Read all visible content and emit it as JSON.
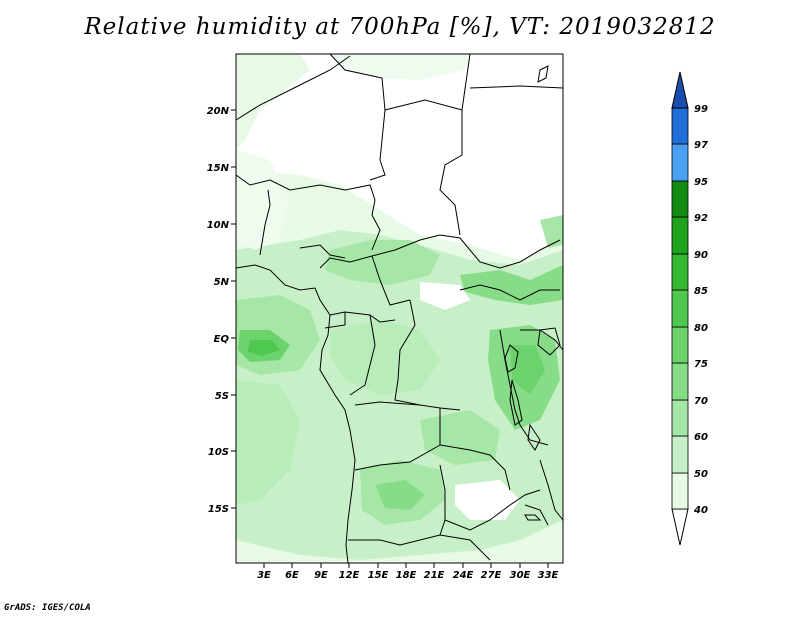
{
  "title": "Relative humidity at 700hPa [%], VT: 2019032812",
  "credit": "GrADS: IGES/COLA",
  "map": {
    "lat_labels": [
      "20N",
      "15N",
      "10N",
      "5N",
      "EQ",
      "5S",
      "10S",
      "15S"
    ],
    "lon_labels": [
      "3E",
      "6E",
      "9E",
      "12E",
      "15E",
      "18E",
      "21E",
      "24E",
      "27E",
      "30E",
      "33E"
    ],
    "region": "Central Africa",
    "lon_range": [
      0,
      34.5
    ],
    "lat_range": [
      -19.5,
      24.5
    ]
  },
  "colorbar": {
    "levels": [
      "99",
      "97",
      "95",
      "92",
      "90",
      "85",
      "80",
      "75",
      "70",
      "60",
      "50",
      "40"
    ],
    "colors": [
      "#ffffff",
      "#e6fae6",
      "#c8f0c8",
      "#a6e6a6",
      "#87dc87",
      "#6cd36c",
      "#4fc84f",
      "#35b935",
      "#1fa31f",
      "#138c13",
      "#4a9ff0",
      "#1f6fd6",
      "#1a4fb0"
    ]
  }
}
